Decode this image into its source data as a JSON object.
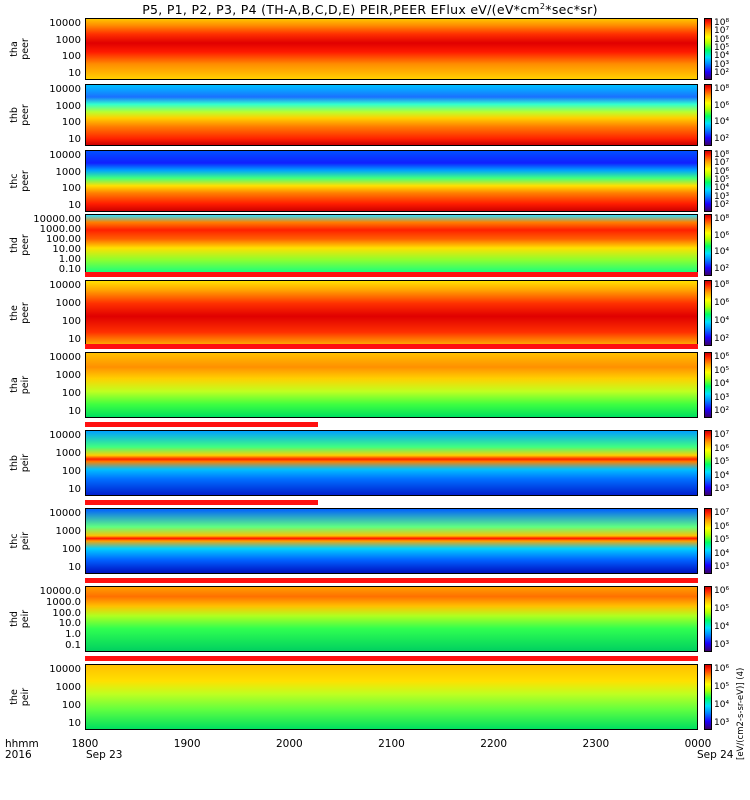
{
  "title": "P5, P1, P2, P3, P4 (TH-A,B,C,D,E) PEIR,PEER EFlux eV/(eV*cm",
  "title_sup": "2",
  "title_tail": "*sec*sr)",
  "axis": {
    "row1_label": "hhmm",
    "row2_label": "2016",
    "x_ticks": [
      "1800",
      "1900",
      "2000",
      "2100",
      "2200",
      "2300",
      "0000"
    ],
    "x_dates": {
      "start": "Sep 23",
      "end": "Sep 24"
    },
    "cbar_unit": "[eV/(cm2-s-sr-eV)] (4)"
  },
  "colors": {
    "flag": "#ff1010"
  },
  "chart_data": {
    "type": "heatmap",
    "x_range": [
      "1800",
      "0000"
    ],
    "panels": [
      {
        "label": [
          "tha",
          "peer"
        ],
        "yticks": [
          "10000",
          "1000",
          "100",
          "10"
        ],
        "cbar": [
          "10⁸",
          "10⁷",
          "10⁶",
          "10⁵",
          "10⁴",
          "10³",
          "10²"
        ]
      },
      {
        "label": [
          "thb",
          "peer"
        ],
        "yticks": [
          "10000",
          "1000",
          "100",
          "10"
        ],
        "cbar": [
          "10⁸",
          "10⁶",
          "10⁴",
          "10²"
        ]
      },
      {
        "label": [
          "thc",
          "peer"
        ],
        "yticks": [
          "10000",
          "1000",
          "100",
          "10"
        ],
        "cbar": [
          "10⁸",
          "10⁷",
          "10⁶",
          "10⁵",
          "10⁴",
          "10³",
          "10²"
        ]
      },
      {
        "label": [
          "thd",
          "peer"
        ],
        "yticks": [
          "10000.00",
          "1000.00",
          "100.00",
          "10.00",
          "1.00",
          "0.10"
        ],
        "cbar": [
          "10⁸",
          "10⁶",
          "10⁴",
          "10²"
        ]
      },
      {
        "label": [
          "the",
          "peer"
        ],
        "yticks": [
          "10000",
          "1000",
          "100",
          "10"
        ],
        "cbar": [
          "10⁸",
          "10⁶",
          "10⁴",
          "10²"
        ]
      },
      {
        "label": [
          "tha",
          "peir"
        ],
        "yticks": [
          "10000",
          "1000",
          "100",
          "10"
        ],
        "cbar": [
          "10⁶",
          "10⁵",
          "10⁴",
          "10³",
          "10²"
        ]
      },
      {
        "label": [
          "thb",
          "peir"
        ],
        "yticks": [
          "10000",
          "1000",
          "100",
          "10"
        ],
        "cbar": [
          "10⁷",
          "10⁶",
          "10⁵",
          "10⁴",
          "10³"
        ]
      },
      {
        "label": [
          "thc",
          "peir"
        ],
        "yticks": [
          "10000",
          "1000",
          "100",
          "10"
        ],
        "cbar": [
          "10⁷",
          "10⁶",
          "10⁵",
          "10⁴",
          "10³"
        ]
      },
      {
        "label": [
          "thd",
          "peir"
        ],
        "yticks": [
          "10000.0",
          "1000.0",
          "100.0",
          "10.0",
          "1.0",
          "0.1"
        ],
        "cbar": [
          "10⁶",
          "10⁵",
          "10⁴",
          "10³"
        ]
      },
      {
        "label": [
          "the",
          "peir"
        ],
        "yticks": [
          "10000",
          "1000",
          "100",
          "10"
        ],
        "cbar": [
          "10⁶",
          "10⁵",
          "10⁴",
          "10³"
        ]
      }
    ]
  }
}
